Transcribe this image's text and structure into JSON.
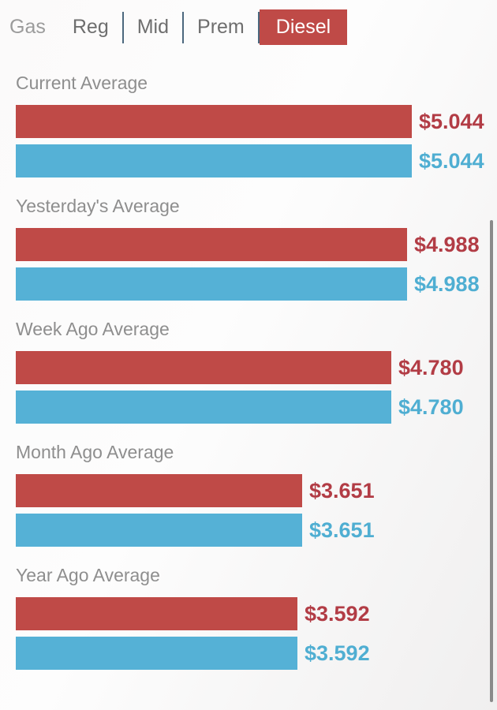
{
  "tabs": {
    "gas": {
      "label": "Gas"
    },
    "reg": {
      "label": "Reg"
    },
    "mid": {
      "label": "Mid"
    },
    "prem": {
      "label": "Prem"
    },
    "diesel": {
      "label": "Diesel"
    },
    "active_tab": "Diesel"
  },
  "colors": {
    "bar_red": "#bf4a47",
    "bar_blue": "#55b1d6",
    "value_red": "#b23c45",
    "value_blue": "#4faed2",
    "title_gray": "#8e8e8e",
    "tab_gray": "#6e6e6e",
    "tab_gas_gray": "#9b9b9b",
    "tab_separator": "#4c687e",
    "tab_active_bg": "#bf4a47",
    "tab_active_text": "#ffffff",
    "scrollbar_gray": "#8a8a8a"
  },
  "chart_data": {
    "type": "bar",
    "orientation": "horizontal",
    "value_prefix": "$",
    "axis_min": 0,
    "axis_max": 5.044,
    "grid": false,
    "legend": "none",
    "series_colors": [
      "#bf4a47",
      "#55b1d6"
    ],
    "sections": [
      {
        "label": "Current Average",
        "values": [
          5.044,
          5.044
        ],
        "labels": [
          "$5.044",
          "$5.044"
        ]
      },
      {
        "label": "Yesterday's Average",
        "values": [
          4.988,
          4.988
        ],
        "labels": [
          "$4.988",
          "$4.988"
        ]
      },
      {
        "label": "Week Ago Average",
        "values": [
          4.78,
          4.78
        ],
        "labels": [
          "$4.780",
          "$4.780"
        ]
      },
      {
        "label": "Month Ago Average",
        "values": [
          3.651,
          3.651
        ],
        "labels": [
          "$3.651",
          "$3.651"
        ]
      },
      {
        "label": "Year Ago Average",
        "values": [
          3.592,
          3.592
        ],
        "labels": [
          "$3.592",
          "$3.592"
        ]
      }
    ]
  }
}
